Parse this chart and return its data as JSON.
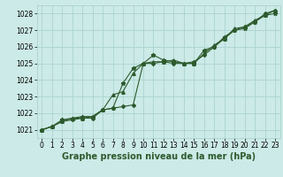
{
  "background_color": "#cceae7",
  "grid_color": "#aad4d0",
  "line_color": "#2d5a2d",
  "title": "Graphe pression niveau de la mer (hPa)",
  "xlim": [
    -0.5,
    23.5
  ],
  "ylim": [
    1020.5,
    1028.5
  ],
  "yticks": [
    1021,
    1022,
    1023,
    1024,
    1025,
    1026,
    1027,
    1028
  ],
  "xticks": [
    0,
    1,
    2,
    3,
    4,
    5,
    6,
    7,
    8,
    9,
    10,
    11,
    12,
    13,
    14,
    15,
    16,
    17,
    18,
    19,
    20,
    21,
    22,
    23
  ],
  "series1": [
    1021.0,
    1021.2,
    1021.6,
    1021.7,
    1021.8,
    1021.8,
    1022.2,
    1022.3,
    1023.8,
    1024.7,
    1025.0,
    1025.5,
    1025.2,
    1025.1,
    1025.0,
    1025.0,
    1025.8,
    1026.0,
    1026.6,
    1027.0,
    1027.1,
    1027.5,
    1027.9,
    1028.0
  ],
  "series2": [
    1021.0,
    1021.2,
    1021.5,
    1021.7,
    1021.7,
    1021.8,
    1022.2,
    1023.1,
    1023.3,
    1024.4,
    1025.0,
    1025.1,
    1025.1,
    1025.2,
    1025.0,
    1025.0,
    1025.6,
    1026.1,
    1026.5,
    1027.1,
    1027.2,
    1027.6,
    1027.9,
    1028.2
  ],
  "series3": [
    1021.0,
    1021.2,
    1021.5,
    1021.6,
    1021.7,
    1021.7,
    1022.2,
    1022.3,
    1022.4,
    1022.5,
    1025.0,
    1025.0,
    1025.1,
    1025.0,
    1025.0,
    1025.1,
    1025.5,
    1026.0,
    1026.5,
    1027.0,
    1027.2,
    1027.5,
    1028.0,
    1028.2
  ],
  "title_fontsize": 7,
  "tick_fontsize": 5.5
}
